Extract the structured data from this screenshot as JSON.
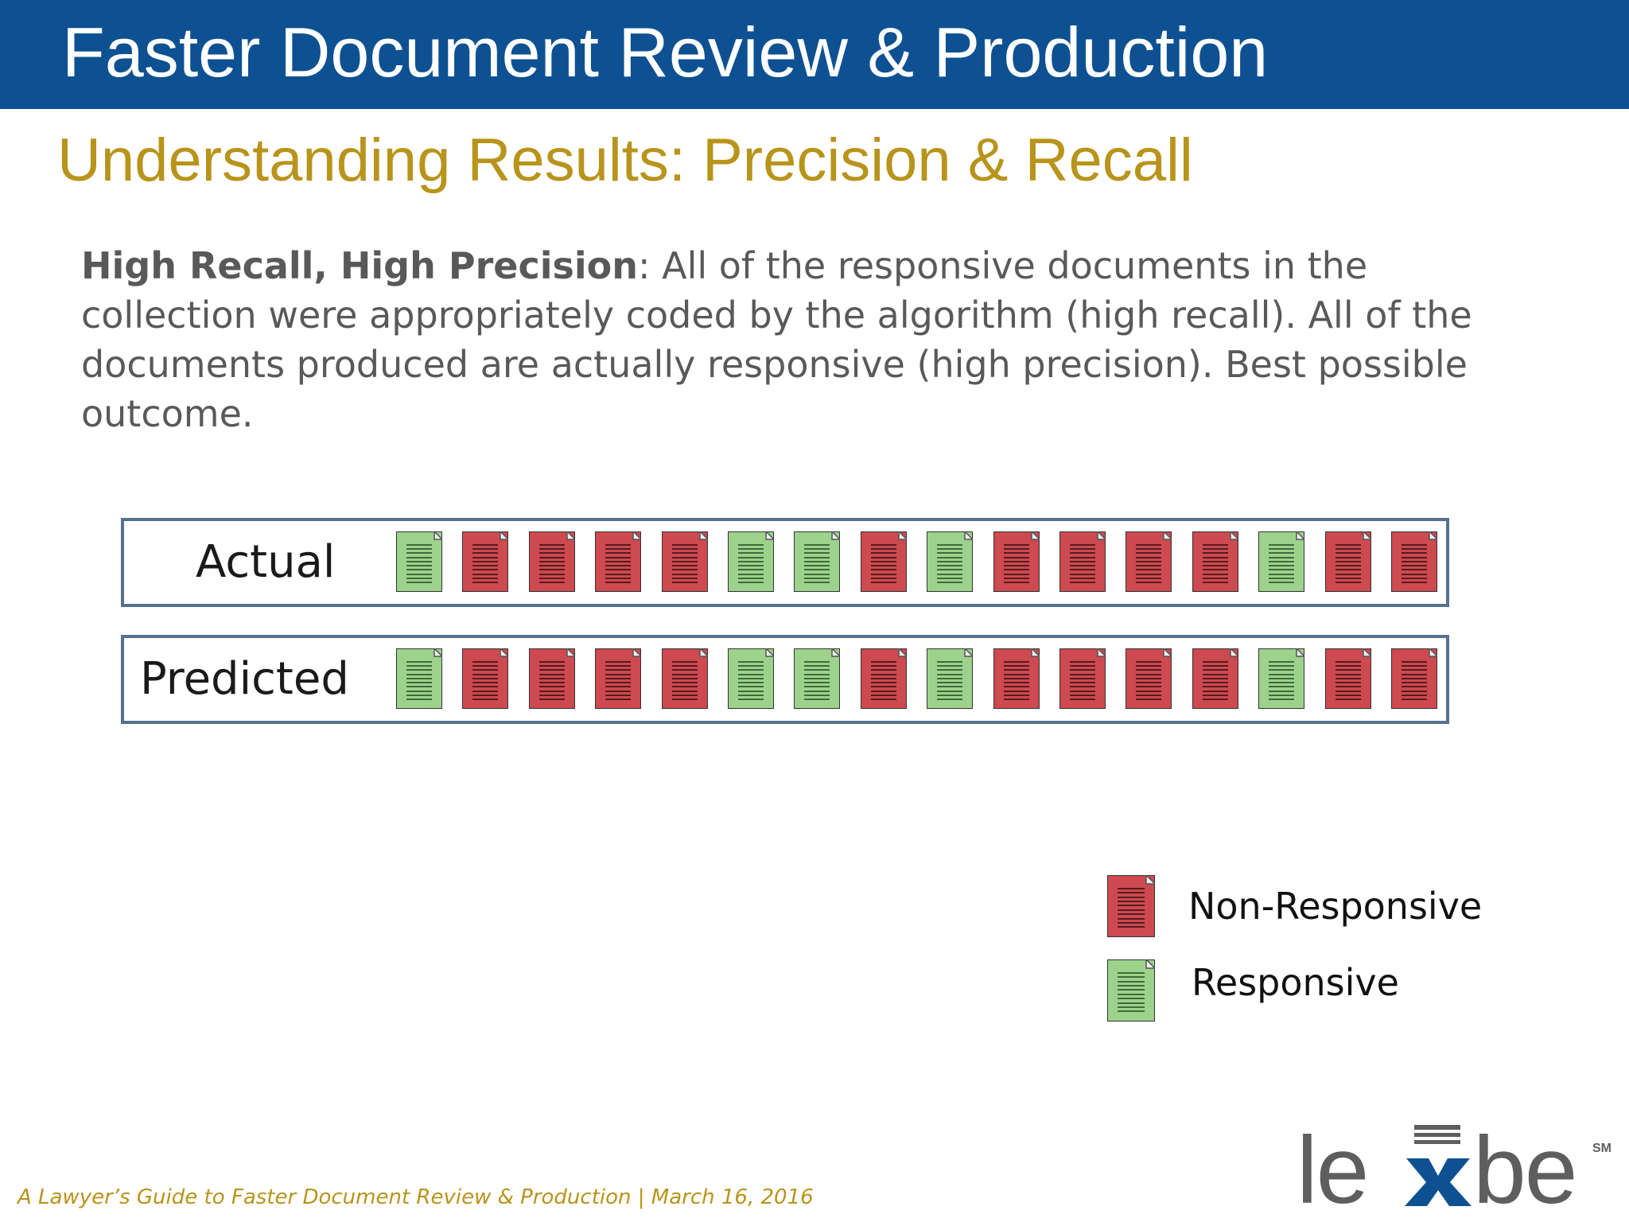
{
  "header": {
    "title": "Faster Document Review & Production"
  },
  "subtitle": "Understanding Results: Precision & Recall",
  "body": {
    "bold_lead": "High Recall, High Precision",
    "text": ": All of the responsive documents in the collection were appropriately coded by the algorithm (high recall). All of the documents produced are actually responsive (high precision). Best possible outcome."
  },
  "rows": [
    {
      "label": "Actual",
      "docs": [
        "responsive",
        "non-responsive",
        "non-responsive",
        "non-responsive",
        "non-responsive",
        "responsive",
        "responsive",
        "non-responsive",
        "responsive",
        "non-responsive",
        "non-responsive",
        "non-responsive",
        "non-responsive",
        "responsive",
        "non-responsive",
        "non-responsive"
      ]
    },
    {
      "label": "Predicted",
      "docs": [
        "responsive",
        "non-responsive",
        "non-responsive",
        "non-responsive",
        "non-responsive",
        "responsive",
        "responsive",
        "non-responsive",
        "responsive",
        "non-responsive",
        "non-responsive",
        "non-responsive",
        "non-responsive",
        "responsive",
        "non-responsive",
        "non-responsive"
      ]
    }
  ],
  "legend": [
    {
      "key": "non-responsive",
      "label": "Non-Responsive"
    },
    {
      "key": "responsive",
      "label": "Responsive"
    }
  ],
  "colors": {
    "header_bg": "#0e5192",
    "subtitle": "#b8941b",
    "non_responsive": "#cc4a50",
    "responsive": "#9dd28c",
    "box_border": "#56718f"
  },
  "footer": {
    "text": "A Lawyer’s Guide to Faster Document Review & Production | March 16, 2016"
  },
  "logo": {
    "text": "lexbe",
    "mark": "SM"
  }
}
